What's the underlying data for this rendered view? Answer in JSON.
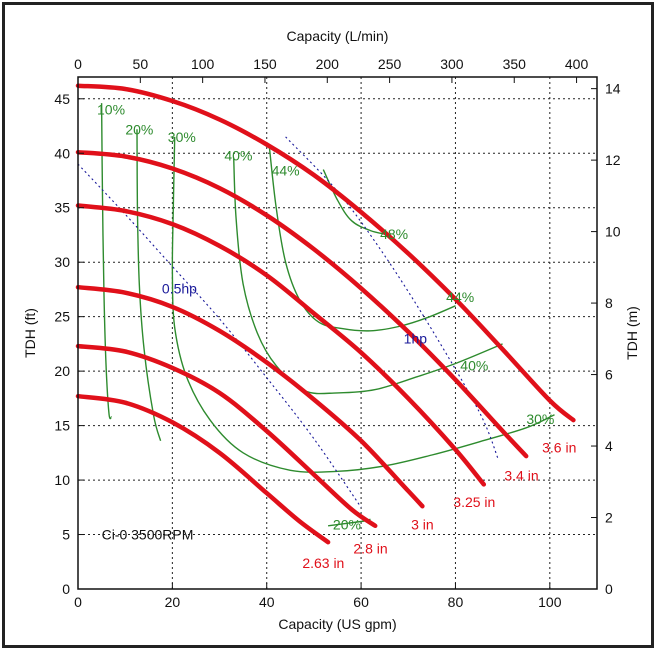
{
  "chart_data": {
    "type": "line",
    "title": "",
    "xlabel_bottom": "Capacity (US gpm)",
    "xlabel_top": "Capacity (L/min)",
    "ylabel_left": "TDH (ft)",
    "ylabel_right": "TDH (m)",
    "xlim": [
      0,
      110
    ],
    "ylim": [
      0,
      47
    ],
    "x_ticks": [
      0,
      20,
      40,
      60,
      80,
      100
    ],
    "y_ticks": [
      0,
      5,
      10,
      15,
      20,
      25,
      30,
      35,
      40,
      45
    ],
    "top_ticks": [
      0,
      50,
      100,
      150,
      200,
      250,
      300,
      350,
      400
    ],
    "right_ticks": [
      0,
      2,
      4,
      6,
      8,
      10,
      12,
      14
    ],
    "grid": "dotted",
    "annotation": "Ci-0 3500RPM",
    "colors": {
      "impeller": "#e0101a",
      "efficiency": "#2e8b2e",
      "power": "#1a1a9a",
      "grid": "#222222"
    },
    "impeller_curves": [
      {
        "label": "2.63 in",
        "label_at": [
          52,
          2.4
        ],
        "x": [
          0,
          10,
          20,
          30,
          40,
          47,
          53
        ],
        "y": [
          17.7,
          17.1,
          15.3,
          12.5,
          8.8,
          6.2,
          4.3
        ]
      },
      {
        "label": "2.8 in",
        "label_at": [
          62,
          3.7
        ],
        "x": [
          0,
          10,
          20,
          30,
          40,
          50,
          58,
          63
        ],
        "y": [
          22.3,
          21.8,
          20.3,
          18.0,
          14.5,
          10.5,
          7.3,
          5.8
        ]
      },
      {
        "label": "3 in",
        "label_at": [
          73,
          5.9
        ],
        "x": [
          0,
          10,
          20,
          30,
          40,
          50,
          60,
          70,
          73
        ],
        "y": [
          27.7,
          27.2,
          25.9,
          23.7,
          20.8,
          17.4,
          13.6,
          9.0,
          7.6
        ]
      },
      {
        "label": "3.25 in",
        "label_at": [
          84,
          8.0
        ],
        "x": [
          0,
          10,
          20,
          30,
          40,
          50,
          60,
          70,
          80,
          86
        ],
        "y": [
          35.2,
          34.7,
          33.5,
          31.5,
          28.8,
          25.3,
          21.7,
          17.5,
          12.8,
          9.6
        ]
      },
      {
        "label": "3.4 in",
        "label_at": [
          94,
          10.4
        ],
        "x": [
          0,
          10,
          20,
          30,
          40,
          50,
          60,
          70,
          80,
          90,
          95
        ],
        "y": [
          40.1,
          39.7,
          38.6,
          36.8,
          34.3,
          31.2,
          27.6,
          23.6,
          19.2,
          14.5,
          12.2
        ]
      },
      {
        "label": "3.6 in",
        "label_at": [
          102,
          13.0
        ],
        "x": [
          0,
          10,
          20,
          30,
          40,
          50,
          60,
          70,
          80,
          90,
          100,
          105
        ],
        "y": [
          46.2,
          45.9,
          44.8,
          43.1,
          40.8,
          38.0,
          34.6,
          30.8,
          26.6,
          22.0,
          17.3,
          15.5
        ]
      }
    ],
    "efficiency_curves": [
      {
        "label": "10%",
        "label_at": [
          7,
          44
        ],
        "x": [
          5,
          5.2,
          5.5,
          6.0,
          6.6,
          7.1
        ],
        "y": [
          44.6,
          36.0,
          27.0,
          20.0,
          16.0,
          15.8
        ]
      },
      {
        "label": "20%",
        "label_at": [
          13,
          42.2
        ],
        "x": [
          12.5,
          12.6,
          13.0,
          14.0,
          16.0,
          17.5
        ],
        "y": [
          42.2,
          35.0,
          28.0,
          22.0,
          16.0,
          13.6
        ]
      },
      {
        "label": "30%",
        "label_at": [
          22,
          41.5
        ],
        "x": [
          20.5,
          20.2,
          20.0,
          20.5,
          23,
          28,
          35,
          45,
          55,
          65,
          75,
          85,
          95,
          101
        ],
        "y": [
          41.5,
          35.0,
          29.0,
          24.0,
          19.5,
          15.5,
          12.5,
          10.9,
          10.8,
          11.3,
          12.3,
          13.5,
          14.8,
          16.0
        ]
      },
      {
        "label": "40%",
        "label_at": [
          34,
          39.8
        ],
        "x": [
          33.0,
          33.5,
          35.0,
          38.0,
          42.0,
          48,
          55,
          63,
          72,
          80,
          90
        ],
        "y": [
          39.6,
          34.0,
          28.0,
          23.5,
          20.5,
          18.2,
          18.0,
          18.3,
          19.5,
          20.7,
          22.5
        ]
      },
      {
        "label": "44%",
        "label_at": [
          44,
          38.4
        ],
        "x": [
          40.5,
          42.0,
          44.0,
          47.0,
          51.0,
          56,
          62,
          68,
          74,
          80
        ],
        "y": [
          40.8,
          35.0,
          30.0,
          26.5,
          24.5,
          23.9,
          23.7,
          24.1,
          24.9,
          26.0
        ]
      },
      {
        "label": "48%",
        "label_at": [
          67,
          32.6
        ],
        "x": [
          52,
          55,
          58,
          62,
          66
        ],
        "y": [
          38.5,
          35.7,
          33.8,
          32.9,
          32.5
        ]
      }
    ],
    "efficiency_labels_extra": [
      {
        "label": "44%",
        "label_at": [
          81,
          26.8
        ]
      },
      {
        "label": "40%",
        "label_at": [
          84,
          20.5
        ]
      },
      {
        "label": "30%",
        "label_at": [
          98,
          15.6
        ]
      },
      {
        "label": "20%",
        "label_at": [
          57,
          5.9
        ]
      }
    ],
    "efficiency_20_tail": {
      "x": [
        53,
        60,
        62
      ],
      "y": [
        5.8,
        6.2,
        6.4
      ]
    },
    "power_curves": [
      {
        "label": "0.5hp",
        "label_at": [
          21.5,
          27.6
        ],
        "x": [
          0,
          10,
          20,
          30,
          40,
          50,
          60
        ],
        "y": [
          39.0,
          34.4,
          29.6,
          24.8,
          19.4,
          13.8,
          7.5
        ]
      },
      {
        "label": "1hp",
        "label_at": [
          71.5,
          23.0
        ],
        "x": [
          44,
          55,
          65,
          75,
          85,
          89
        ],
        "y": [
          41.5,
          36.5,
          30.6,
          23.8,
          16.3,
          12.0
        ]
      }
    ]
  }
}
